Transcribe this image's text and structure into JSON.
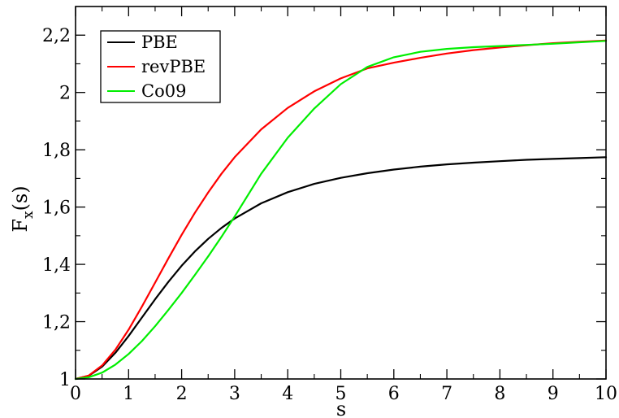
{
  "chart_data": {
    "type": "line",
    "xlabel": "s",
    "ylabel": {
      "main": "F",
      "sub": "x",
      "suffix": "(s)"
    },
    "xlim": [
      0,
      10
    ],
    "ylim": [
      1,
      2.3
    ],
    "xticks": [
      0,
      1,
      2,
      3,
      4,
      5,
      6,
      7,
      8,
      9,
      10
    ],
    "xtick_labels": [
      "0",
      "1",
      "2",
      "3",
      "4",
      "5",
      "6",
      "7",
      "8",
      "9",
      "10"
    ],
    "yticks": [
      1,
      1.2,
      1.4,
      1.6,
      1.8,
      2,
      2.2
    ],
    "ytick_labels": [
      "1",
      "1,2",
      "1,4",
      "1,6",
      "1,8",
      "2",
      "2,2"
    ],
    "grid": false,
    "legend_position": "top-left",
    "series": [
      {
        "name": "PBE",
        "color": "#000000",
        "x": [
          0,
          0.25,
          0.5,
          0.75,
          1,
          1.25,
          1.5,
          1.75,
          2,
          2.25,
          2.5,
          2.75,
          3,
          3.5,
          4,
          4.5,
          5,
          5.5,
          6,
          6.5,
          7,
          7.5,
          8,
          8.5,
          9,
          9.5,
          10
        ],
        "y": [
          1,
          1.011,
          1.043,
          1.091,
          1.15,
          1.214,
          1.278,
          1.339,
          1.395,
          1.445,
          1.489,
          1.527,
          1.56,
          1.613,
          1.652,
          1.681,
          1.702,
          1.718,
          1.731,
          1.741,
          1.749,
          1.755,
          1.76,
          1.765,
          1.768,
          1.771,
          1.774
        ]
      },
      {
        "name": "revPBE",
        "color": "#ff0000",
        "x": [
          0,
          0.25,
          0.5,
          0.75,
          1,
          1.25,
          1.5,
          1.75,
          2,
          2.25,
          2.5,
          2.75,
          3,
          3.5,
          4,
          4.5,
          5,
          5.5,
          6,
          6.5,
          7,
          7.5,
          8,
          8.5,
          9,
          9.5,
          10
        ],
        "y": [
          1,
          1.012,
          1.047,
          1.102,
          1.172,
          1.252,
          1.336,
          1.421,
          1.503,
          1.58,
          1.651,
          1.716,
          1.774,
          1.871,
          1.946,
          2.004,
          2.049,
          2.084,
          2.104,
          2.121,
          2.136,
          2.148,
          2.157,
          2.165,
          2.172,
          2.177,
          2.181
        ]
      },
      {
        "name": "Co09",
        "color": "#00ee00",
        "x": [
          0,
          0.25,
          0.5,
          0.75,
          1,
          1.25,
          1.5,
          1.75,
          2,
          2.25,
          2.5,
          2.75,
          3,
          3.5,
          4,
          4.5,
          5,
          5.5,
          6,
          6.5,
          7,
          7.5,
          8,
          8.5,
          9,
          9.5,
          10
        ],
        "y": [
          1,
          1.006,
          1.022,
          1.05,
          1.087,
          1.132,
          1.184,
          1.241,
          1.3,
          1.363,
          1.428,
          1.496,
          1.567,
          1.716,
          1.842,
          1.944,
          2.029,
          2.089,
          2.123,
          2.142,
          2.152,
          2.158,
          2.162,
          2.166,
          2.17,
          2.175,
          2.18
        ]
      }
    ]
  }
}
